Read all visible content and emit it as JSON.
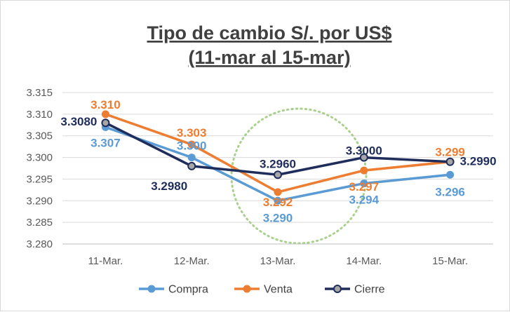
{
  "chart_data": {
    "type": "line",
    "title_line1": "Tipo de cambio S/. por US$",
    "title_line2": "(11-mar al 15-mar)",
    "categories": [
      "11-Mar.",
      "12-Mar.",
      "13-Mar.",
      "14-Mar.",
      "15-Mar."
    ],
    "ylim": [
      3.28,
      3.315
    ],
    "yticks": [
      "3.280",
      "3.285",
      "3.290",
      "3.295",
      "3.300",
      "3.305",
      "3.310",
      "3.315"
    ],
    "grid": true,
    "legend_position": "bottom",
    "series": [
      {
        "name": "Compra",
        "color": "#5b9bd5",
        "values": [
          3.307,
          3.3,
          3.29,
          3.294,
          3.296
        ],
        "labels": [
          "3.307",
          "3.300",
          "3.290",
          "3.294",
          "3.296"
        ]
      },
      {
        "name": "Venta",
        "color": "#ed7d31",
        "values": [
          3.31,
          3.303,
          3.292,
          3.297,
          3.299
        ],
        "labels": [
          "3.310",
          "3.303",
          "3.292",
          "3.297",
          "3.299"
        ]
      },
      {
        "name": "Cierre",
        "color": "#1f2d5c",
        "marker_fill": "#a6a6a6",
        "values": [
          3.308,
          3.298,
          3.296,
          3.3,
          3.299
        ],
        "labels": [
          "3.3080",
          "3.2980",
          "3.2960",
          "3.3000",
          "3.2990"
        ]
      }
    ],
    "annotation": {
      "shape": "dotted-circle",
      "color": "#a9d18e",
      "around_category": "13-Mar."
    }
  }
}
